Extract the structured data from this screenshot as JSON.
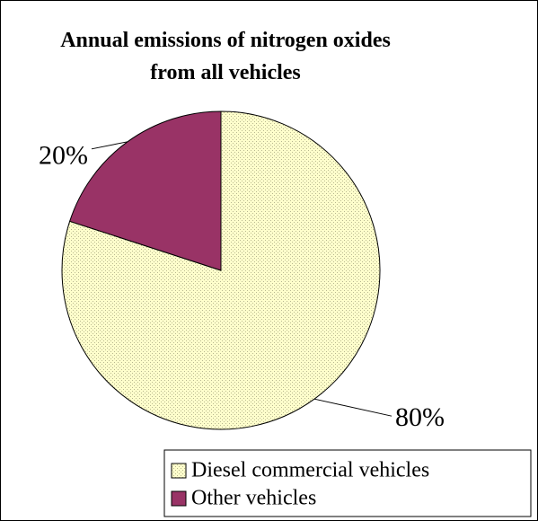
{
  "chart_data": {
    "type": "pie",
    "title": "Annual emissions of nitrogen oxides from all vehicles",
    "categories": [
      "Diesel commercial vehicles",
      "Other vehicles"
    ],
    "values": [
      80,
      20
    ],
    "value_labels": [
      "80%",
      "20%"
    ],
    "colors": [
      "#FFFFCC",
      "#993366"
    ],
    "legend": "bottom-right"
  }
}
